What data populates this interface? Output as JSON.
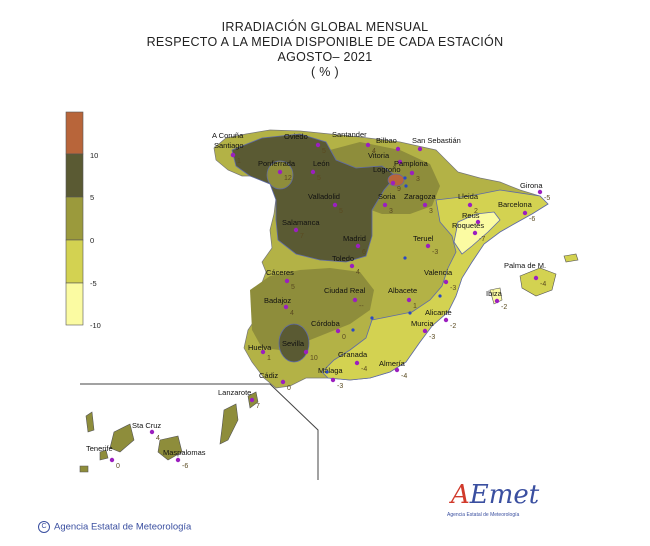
{
  "title": {
    "line1": "IRRADIACIÓN  GLOBAL MENSUAL",
    "line2": "RESPECTO  A LA MEDIA DISPONIBLE DE CADA ESTACIÓN",
    "line3": "AGOSTO– 2021",
    "line4": "( % )"
  },
  "legend": {
    "ticks": [
      "10",
      "5",
      "0",
      "-5",
      "-10"
    ],
    "colors": [
      "#b8653a",
      "#5a5a33",
      "#9b9a3c",
      "#d3d251",
      "#fbfba2"
    ]
  },
  "fill_colors": {
    "light": "#fbfba2",
    "pale": "#d3d251",
    "olive": "#b3b246",
    "mid": "#8e8d3b",
    "dark": "#5a5a33",
    "rust": "#b8653a"
  },
  "stations": [
    {
      "name": "A Coruña",
      "value": ""
    },
    {
      "name": "Santiago",
      "value": "1"
    },
    {
      "name": "Oviedo",
      "value": "5"
    },
    {
      "name": "Santander",
      "value": "4"
    },
    {
      "name": "Bilbao",
      "value": ""
    },
    {
      "name": "San Sebastián",
      "value": ""
    },
    {
      "name": "Vitoria",
      "value": ""
    },
    {
      "name": "Pamplona",
      "value": "3"
    },
    {
      "name": "Logroño",
      "value": "9"
    },
    {
      "name": "Ponferrada",
      "value": "12"
    },
    {
      "name": "León",
      "value": "5"
    },
    {
      "name": "Valladolid",
      "value": "5"
    },
    {
      "name": "Soria",
      "value": "3"
    },
    {
      "name": "Zaragoza",
      "value": "3"
    },
    {
      "name": "Lleida",
      "value": "2"
    },
    {
      "name": "Girona",
      "value": "-5"
    },
    {
      "name": "Barcelona",
      "value": "-6"
    },
    {
      "name": "Reus",
      "value": ""
    },
    {
      "name": "Roquetes",
      "value": "-7"
    },
    {
      "name": "Salamanca",
      "value": "7"
    },
    {
      "name": "Madrid",
      "value": "6"
    },
    {
      "name": "Teruel",
      "value": "-3"
    },
    {
      "name": "Toledo",
      "value": "4"
    },
    {
      "name": "Valencia",
      "value": "-3"
    },
    {
      "name": "Palma de M.",
      "value": "-4"
    },
    {
      "name": "Cáceres",
      "value": "5"
    },
    {
      "name": "Ciudad Real",
      "value": "--"
    },
    {
      "name": "Albacete",
      "value": "1"
    },
    {
      "name": "Ibiza",
      "value": "-2"
    },
    {
      "name": "Badajoz",
      "value": "4"
    },
    {
      "name": "Alicante",
      "value": "-2"
    },
    {
      "name": "Córdoba",
      "value": "0"
    },
    {
      "name": "Murcia",
      "value": "-3"
    },
    {
      "name": "Huelva",
      "value": "1"
    },
    {
      "name": "Sevilla",
      "value": "10"
    },
    {
      "name": "Granada",
      "value": "-4"
    },
    {
      "name": "Almería",
      "value": "-4"
    },
    {
      "name": "Cádiz",
      "value": "0"
    },
    {
      "name": "Málaga",
      "value": "-3"
    },
    {
      "name": "Lanzarote",
      "value": "7"
    },
    {
      "name": "Sta Cruz",
      "value": "4"
    },
    {
      "name": "Tenerife",
      "value": "0"
    },
    {
      "name": "Maspalomas",
      "value": "-6"
    }
  ],
  "footer": {
    "copyright": "Agencia Estatal de Meteorología",
    "symbol": "C"
  },
  "logo": {
    "word_a": "A",
    "word_rest": "Emet",
    "subtitle": "Agencia Estatal de Meteorología"
  }
}
